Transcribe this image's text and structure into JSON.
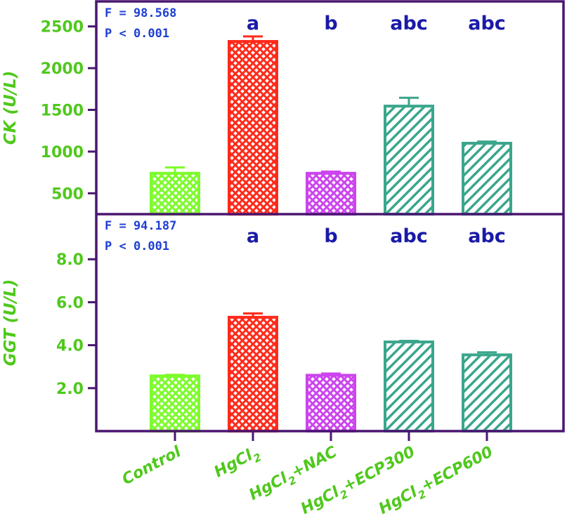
{
  "colors": {
    "frame": "#4a1670",
    "control": "#7cfc2a",
    "hgcl2": "#ff2a1a",
    "nac": "#cc44ee",
    "ecp": "#3aa68c",
    "axis_text": "#4fc81c",
    "stats_text": "#1f3fd4",
    "letters": "#1a1aa8"
  },
  "categories": [
    {
      "main": "Control",
      "sub": "",
      "rest": ""
    },
    {
      "main": "HgCl",
      "sub": "2",
      "rest": ""
    },
    {
      "main": "HgCl",
      "sub": "2",
      "rest": "+NAC"
    },
    {
      "main": "HgCl",
      "sub": "2",
      "rest": "+ECP300"
    },
    {
      "main": "HgCl",
      "sub": "2",
      "rest": "+ECP600"
    }
  ],
  "chart_data": [
    {
      "type": "bar",
      "ylabel": "CK (U/L)",
      "ylim": [
        250,
        2800
      ],
      "yticks": [
        500,
        1000,
        1500,
        2000,
        2500
      ],
      "tick_labels": [
        "500",
        "1000",
        "1500",
        "2000",
        "2500"
      ],
      "values": [
        740,
        2320,
        740,
        1545,
        1100
      ],
      "errors": [
        70,
        60,
        20,
        100,
        20
      ],
      "stats": [
        "F = 98.568",
        "P < 0.001"
      ],
      "letters": [
        "",
        "a",
        "b",
        "abc",
        "abc"
      ],
      "patterns": [
        "cross",
        "cross",
        "cross",
        "diag",
        "diag"
      ]
    },
    {
      "type": "bar",
      "ylabel": "GGT (U/L)",
      "ylim": [
        0,
        10.1
      ],
      "yticks": [
        2,
        4,
        6,
        8
      ],
      "tick_labels": [
        "2.0",
        "4.0",
        "6.0",
        "8.0"
      ],
      "values": [
        2.57,
        5.3,
        2.6,
        4.15,
        3.55
      ],
      "errors": [
        0.05,
        0.18,
        0.08,
        0.05,
        0.12
      ],
      "stats": [
        "F = 94.187",
        "P < 0.001"
      ],
      "letters": [
        "",
        "a",
        "b",
        "abc",
        "abc"
      ],
      "patterns": [
        "cross",
        "cross",
        "cross",
        "diag",
        "diag"
      ]
    }
  ]
}
